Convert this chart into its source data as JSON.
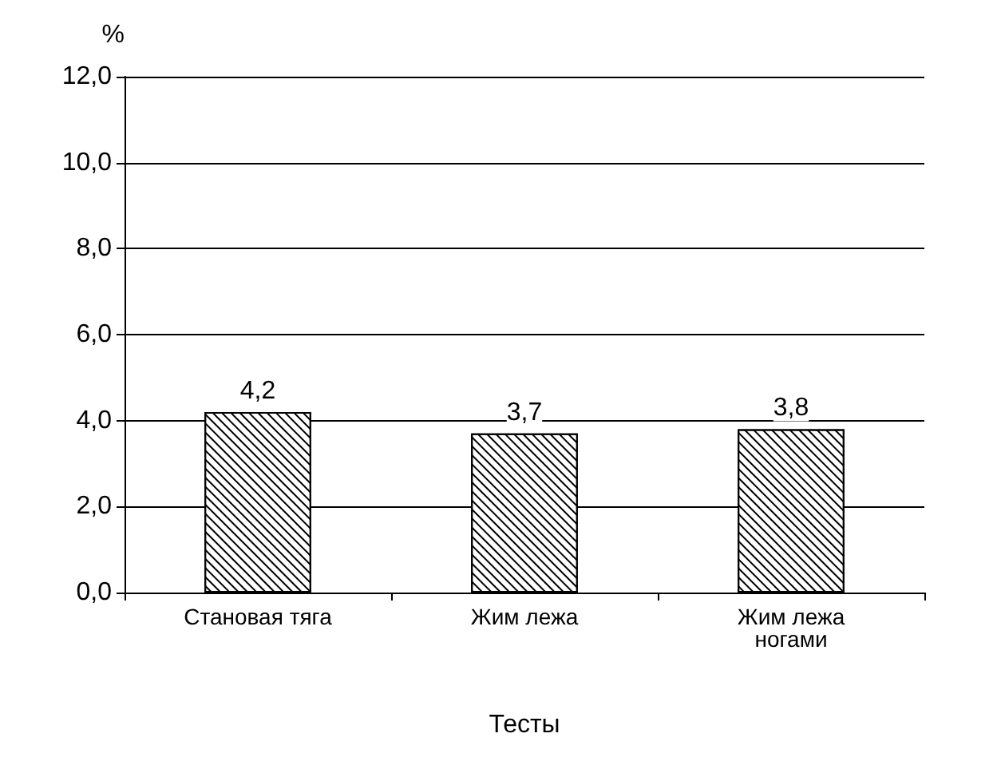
{
  "chart_data": {
    "type": "bar",
    "xlabel": "Тесты",
    "ylabel": "%",
    "categories": [
      "Становая тяга",
      "Жим лежа",
      "Жим лежа\nногами"
    ],
    "values": [
      4.2,
      3.7,
      3.8
    ],
    "value_labels": [
      "4,2",
      "3,7",
      "3,8"
    ],
    "color": "#ffffff",
    "ylim": [
      0,
      12
    ],
    "yticks": [
      {
        "value": 0,
        "label": "0,0"
      },
      {
        "value": 2,
        "label": "2,0"
      },
      {
        "value": 4,
        "label": "4,0"
      },
      {
        "value": 6,
        "label": "6,0"
      },
      {
        "value": 8,
        "label": "8,0"
      },
      {
        "value": 10,
        "label": "10,0"
      },
      {
        "value": 12,
        "label": "12,0"
      }
    ],
    "grid": "y"
  }
}
